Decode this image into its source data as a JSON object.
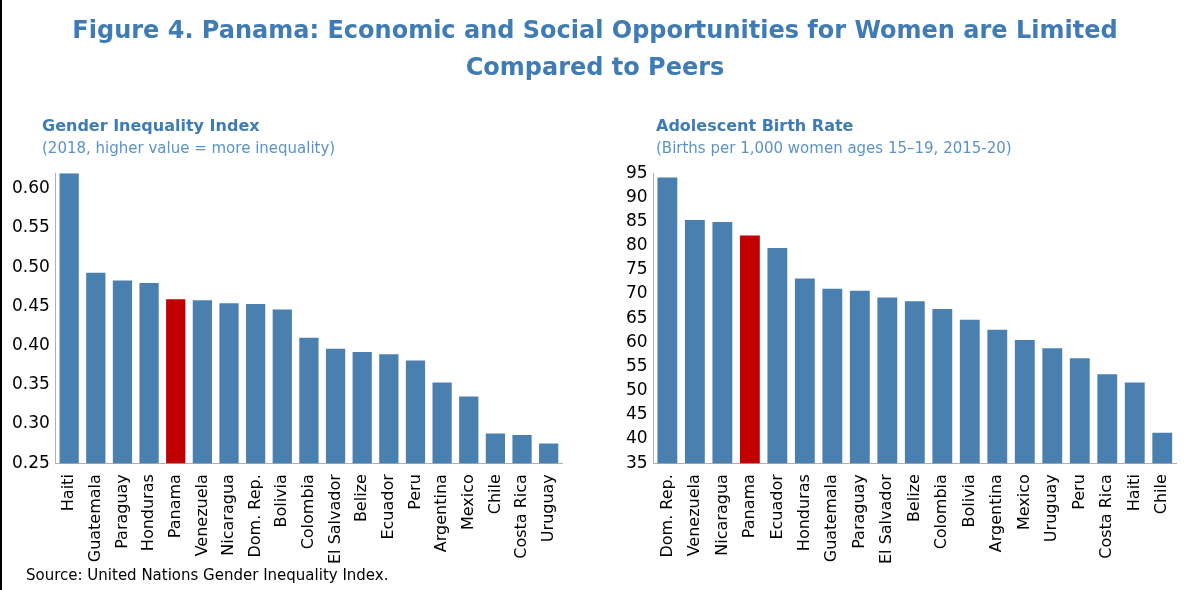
{
  "chart_data": [
    {
      "type": "bar",
      "title": "Gender Inequality Index",
      "subtitle": "(2018, higher value = more inequality)",
      "categories": [
        "Haiti",
        "Guatemala",
        "Paraguay",
        "Honduras",
        "Panama",
        "Venezuela",
        "Nicaragua",
        "Dom. Rep.",
        "Bolivia",
        "Colombia",
        "El Salvador",
        "Belize",
        "Ecuador",
        "Peru",
        "Argentina",
        "Mexico",
        "Chile",
        "Costa Rica",
        "Uruguay"
      ],
      "values": [
        0.62,
        0.493,
        0.483,
        0.48,
        0.459,
        0.458,
        0.454,
        0.453,
        0.446,
        0.41,
        0.396,
        0.392,
        0.389,
        0.381,
        0.353,
        0.335,
        0.288,
        0.286,
        0.275
      ],
      "colors": [
        "#4a80b0",
        "#4a80b0",
        "#4a80b0",
        "#4a80b0",
        "#c00000",
        "#4a80b0",
        "#4a80b0",
        "#4a80b0",
        "#4a80b0",
        "#4a80b0",
        "#4a80b0",
        "#4a80b0",
        "#4a80b0",
        "#4a80b0",
        "#4a80b0",
        "#4a80b0",
        "#4a80b0",
        "#4a80b0",
        "#4a80b0"
      ],
      "ylim": [
        0.25,
        0.62
      ],
      "yticks": [
        0.25,
        {
          "value": 0.3,
          "label": "0.30"
        },
        0.35,
        {
          "value": 0.4,
          "label": "0.40"
        },
        0.45,
        {
          "value": 0.5,
          "label": "0.50"
        },
        0.55,
        {
          "value": 0.6,
          "label": "0.60"
        }
      ],
      "grid": false,
      "legend": false,
      "annotations": [
        "Figure 4. Panama: Economic and Social Opportunities for Women are Limited Compared to Peers",
        "Source: United Nations Gender Inequality Index."
      ]
    },
    {
      "type": "bar",
      "title": "Adolescent Birth Rate",
      "subtitle": "(Births per 1,000 women ages 15–19, 2015-20)",
      "categories": [
        "Dom. Rep.",
        "Venezuela",
        "Nicaragua",
        "Panama",
        "Ecuador",
        "Honduras",
        "Guatemala",
        "Paraguay",
        "El Salvador",
        "Belize",
        "Colombia",
        "Bolivia",
        "Argentina",
        "Mexico",
        "Uruguay",
        "Peru",
        "Costa Rica",
        "Haiti",
        "Chile"
      ],
      "values": [
        94.1,
        85.3,
        84.9,
        82.1,
        79.5,
        73.2,
        71.1,
        70.7,
        69.3,
        68.5,
        66.9,
        64.7,
        62.6,
        60.5,
        58.8,
        56.7,
        53.4,
        51.7,
        41.3
      ],
      "colors": [
        "#4a80b0",
        "#4a80b0",
        "#4a80b0",
        "#c00000",
        "#4a80b0",
        "#4a80b0",
        "#4a80b0",
        "#4a80b0",
        "#4a80b0",
        "#4a80b0",
        "#4a80b0",
        "#4a80b0",
        "#4a80b0",
        "#4a80b0",
        "#4a80b0",
        "#4a80b0",
        "#4a80b0",
        "#4a80b0",
        "#4a80b0"
      ],
      "ylim": [
        35,
        95
      ],
      "yticks": [
        35,
        40,
        45,
        50,
        55,
        60,
        65,
        70,
        75,
        80,
        85,
        90,
        95
      ],
      "grid": false,
      "legend": false
    }
  ]
}
